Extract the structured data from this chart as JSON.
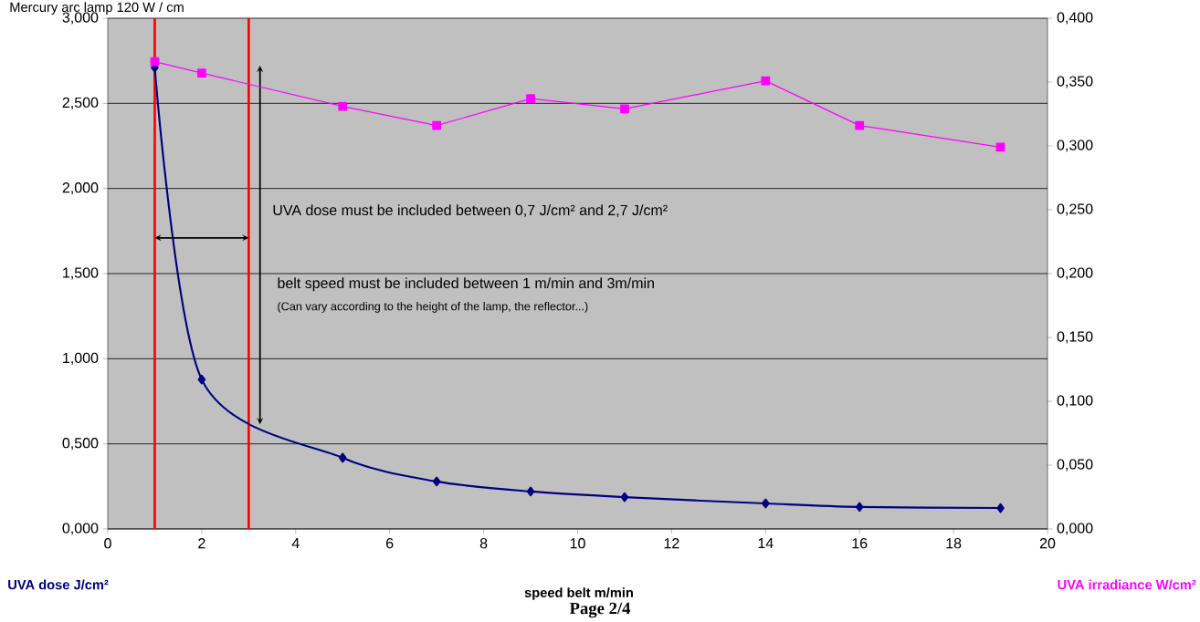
{
  "chart_data": {
    "type": "line",
    "title": "Mercury arc lamp 120 W / cm",
    "xlabel": "speed belt m/min",
    "ylabel": "UVA dose J/cm²",
    "y2label": "UVA irradiance W/cm²",
    "annotations": [
      "UVA dose must be included between 0,7 J/cm² and 2,7 J/cm²",
      "belt speed must be included between 1 m/min and 3m/min",
      "(Can vary according to the height of the lamp, the reflector...)",
      "Page 2/4"
    ],
    "x": [
      1,
      2,
      5,
      7,
      9,
      11,
      14,
      16,
      19
    ],
    "series": [
      {
        "color": "#000080",
        "marker": "diamond",
        "values": [
          2.71,
          0.878,
          0.418,
          0.279,
          0.22,
          0.187,
          0.15,
          0.129,
          0.123
        ]
      },
      {
        "color": "#ff00ff",
        "marker": "square",
        "axis": "y2",
        "values": [
          0.366,
          0.357,
          0.331,
          0.316,
          0.337,
          0.329,
          0.351,
          0.316,
          0.299
        ]
      }
    ],
    "xlim": [
      0,
      20
    ],
    "xticks": [
      0,
      2,
      4,
      6,
      8,
      10,
      12,
      14,
      16,
      18,
      20
    ],
    "ylim": [
      0,
      3
    ],
    "yticks": [
      {
        "value": 0,
        "label": "0,000"
      },
      {
        "value": 0.5,
        "label": "0,500"
      },
      {
        "value": 1,
        "label": "1,000"
      },
      {
        "value": 1.5,
        "label": "1,500"
      },
      {
        "value": 2,
        "label": "2,000"
      },
      {
        "value": 2.5,
        "label": "2,500"
      },
      {
        "value": 3,
        "label": "3,000"
      }
    ],
    "y2lim": [
      0,
      0.4
    ],
    "y2ticks": [
      {
        "value": 0,
        "label": "0,000"
      },
      {
        "value": 0.05,
        "label": "0,050"
      },
      {
        "value": 0.1,
        "label": "0,100"
      },
      {
        "value": 0.15,
        "label": "0,150"
      },
      {
        "value": 0.2,
        "label": "0,200"
      },
      {
        "value": 0.25,
        "label": "0,250"
      },
      {
        "value": 0.3,
        "label": "0,300"
      },
      {
        "value": 0.35,
        "label": "0,350"
      },
      {
        "value": 0.4,
        "label": "0,400"
      }
    ],
    "grid": "y",
    "ref_lines": [
      {
        "axis": "x",
        "value": 1,
        "color": "#ff0000"
      },
      {
        "axis": "x",
        "value": 3,
        "color": "#ff0000"
      }
    ]
  }
}
